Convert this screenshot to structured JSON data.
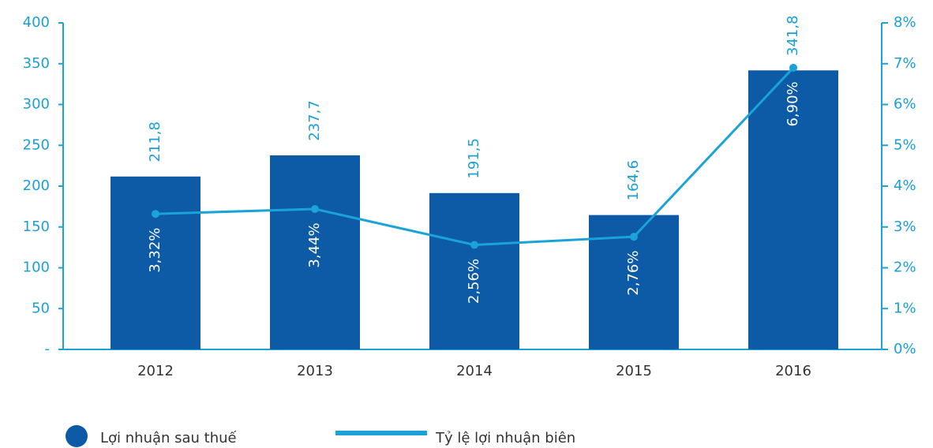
{
  "chart_data": {
    "type": "bar",
    "categories": [
      "2012",
      "2013",
      "2014",
      "2015",
      "2016"
    ],
    "series": [
      {
        "name": "Lợi nhuận sau thuế",
        "type": "bar",
        "color": "#0d5aa7",
        "axis": "y",
        "values": [
          211.8,
          237.7,
          191.5,
          164.6,
          341.8
        ],
        "value_labels": [
          "211,8",
          "237,7",
          "191,5",
          "164,6",
          "341,8"
        ]
      },
      {
        "name": "Tỷ lệ lợi nhuận biên",
        "type": "line",
        "color": "#1aa3d9",
        "axis": "y2",
        "values": [
          3.32,
          3.44,
          2.56,
          2.76,
          6.9
        ],
        "value_labels": [
          "3,32%",
          "3,44%",
          "2,56%",
          "2,76%",
          "6,90%"
        ]
      }
    ],
    "ylim": [
      0,
      400
    ],
    "yticks": [
      {
        "value": 0,
        "label": "-"
      },
      50,
      100,
      150,
      200,
      250,
      300,
      350,
      400
    ],
    "y2lim": [
      0,
      8
    ],
    "y2ticks": [
      {
        "value": 0,
        "label": "0%"
      },
      {
        "value": 1,
        "label": "1%"
      },
      {
        "value": 2,
        "label": "2%"
      },
      {
        "value": 3,
        "label": "3%"
      },
      {
        "value": 4,
        "label": "4%"
      },
      {
        "value": 5,
        "label": "5%"
      },
      {
        "value": 6,
        "label": "6%"
      },
      {
        "value": 7,
        "label": "7%"
      },
      {
        "value": 8,
        "label": "8%"
      }
    ],
    "grid": false,
    "legend": "bottom"
  }
}
